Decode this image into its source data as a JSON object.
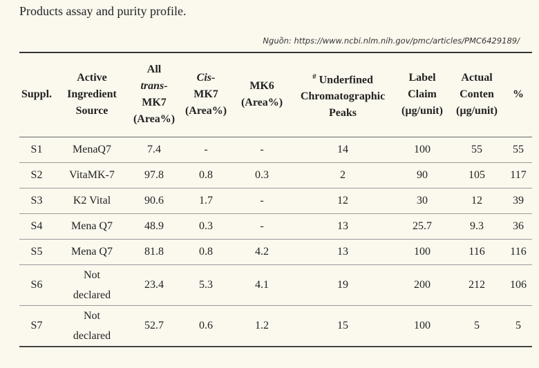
{
  "caption": "Products assay and purity profile.",
  "source": "Nguồn: https://www.ncbi.nlm.nih.gov/pmc/articles/PMC6429189/",
  "table": {
    "header": [
      [
        "Suppl."
      ],
      [
        "Active",
        "Ingredient",
        "Source"
      ],
      [
        "All",
        "trans-",
        "MK7",
        "(Area%)"
      ],
      [
        "Cis-",
        "MK7",
        "(Area%)"
      ],
      [
        "MK6",
        "(Area%)"
      ],
      [
        "#",
        "Underfined",
        "Chromatographic",
        "Peaks"
      ],
      [
        "Label",
        "Claim",
        "(µg/unit)"
      ],
      [
        "Actual",
        "Conten",
        "(µg/unit)"
      ],
      [
        "%"
      ]
    ],
    "rows": [
      [
        "S1",
        "MenaQ7",
        "7.4",
        "-",
        "-",
        "14",
        "100",
        "55",
        "55"
      ],
      [
        "S2",
        "VitaMK-7",
        "97.8",
        "0.8",
        "0.3",
        "2",
        "90",
        "105",
        "117"
      ],
      [
        "S3",
        "K2 Vital",
        "90.6",
        "1.7",
        "-",
        "12",
        "30",
        "12",
        "39"
      ],
      [
        "S4",
        "Mena Q7",
        "48.9",
        "0.3",
        "-",
        "13",
        "25.7",
        "9.3",
        "36"
      ],
      [
        "S5",
        "Mena Q7",
        "81.8",
        "0.8",
        "4.2",
        "13",
        "100",
        "116",
        "116"
      ],
      [
        "S6",
        "Not declared",
        "23.4",
        "5.3",
        "4.1",
        "19",
        "200",
        "212",
        "106"
      ],
      [
        "S7",
        "Not declared",
        "52.7",
        "0.6",
        "1.2",
        "15",
        "100",
        "5",
        "5"
      ]
    ]
  }
}
